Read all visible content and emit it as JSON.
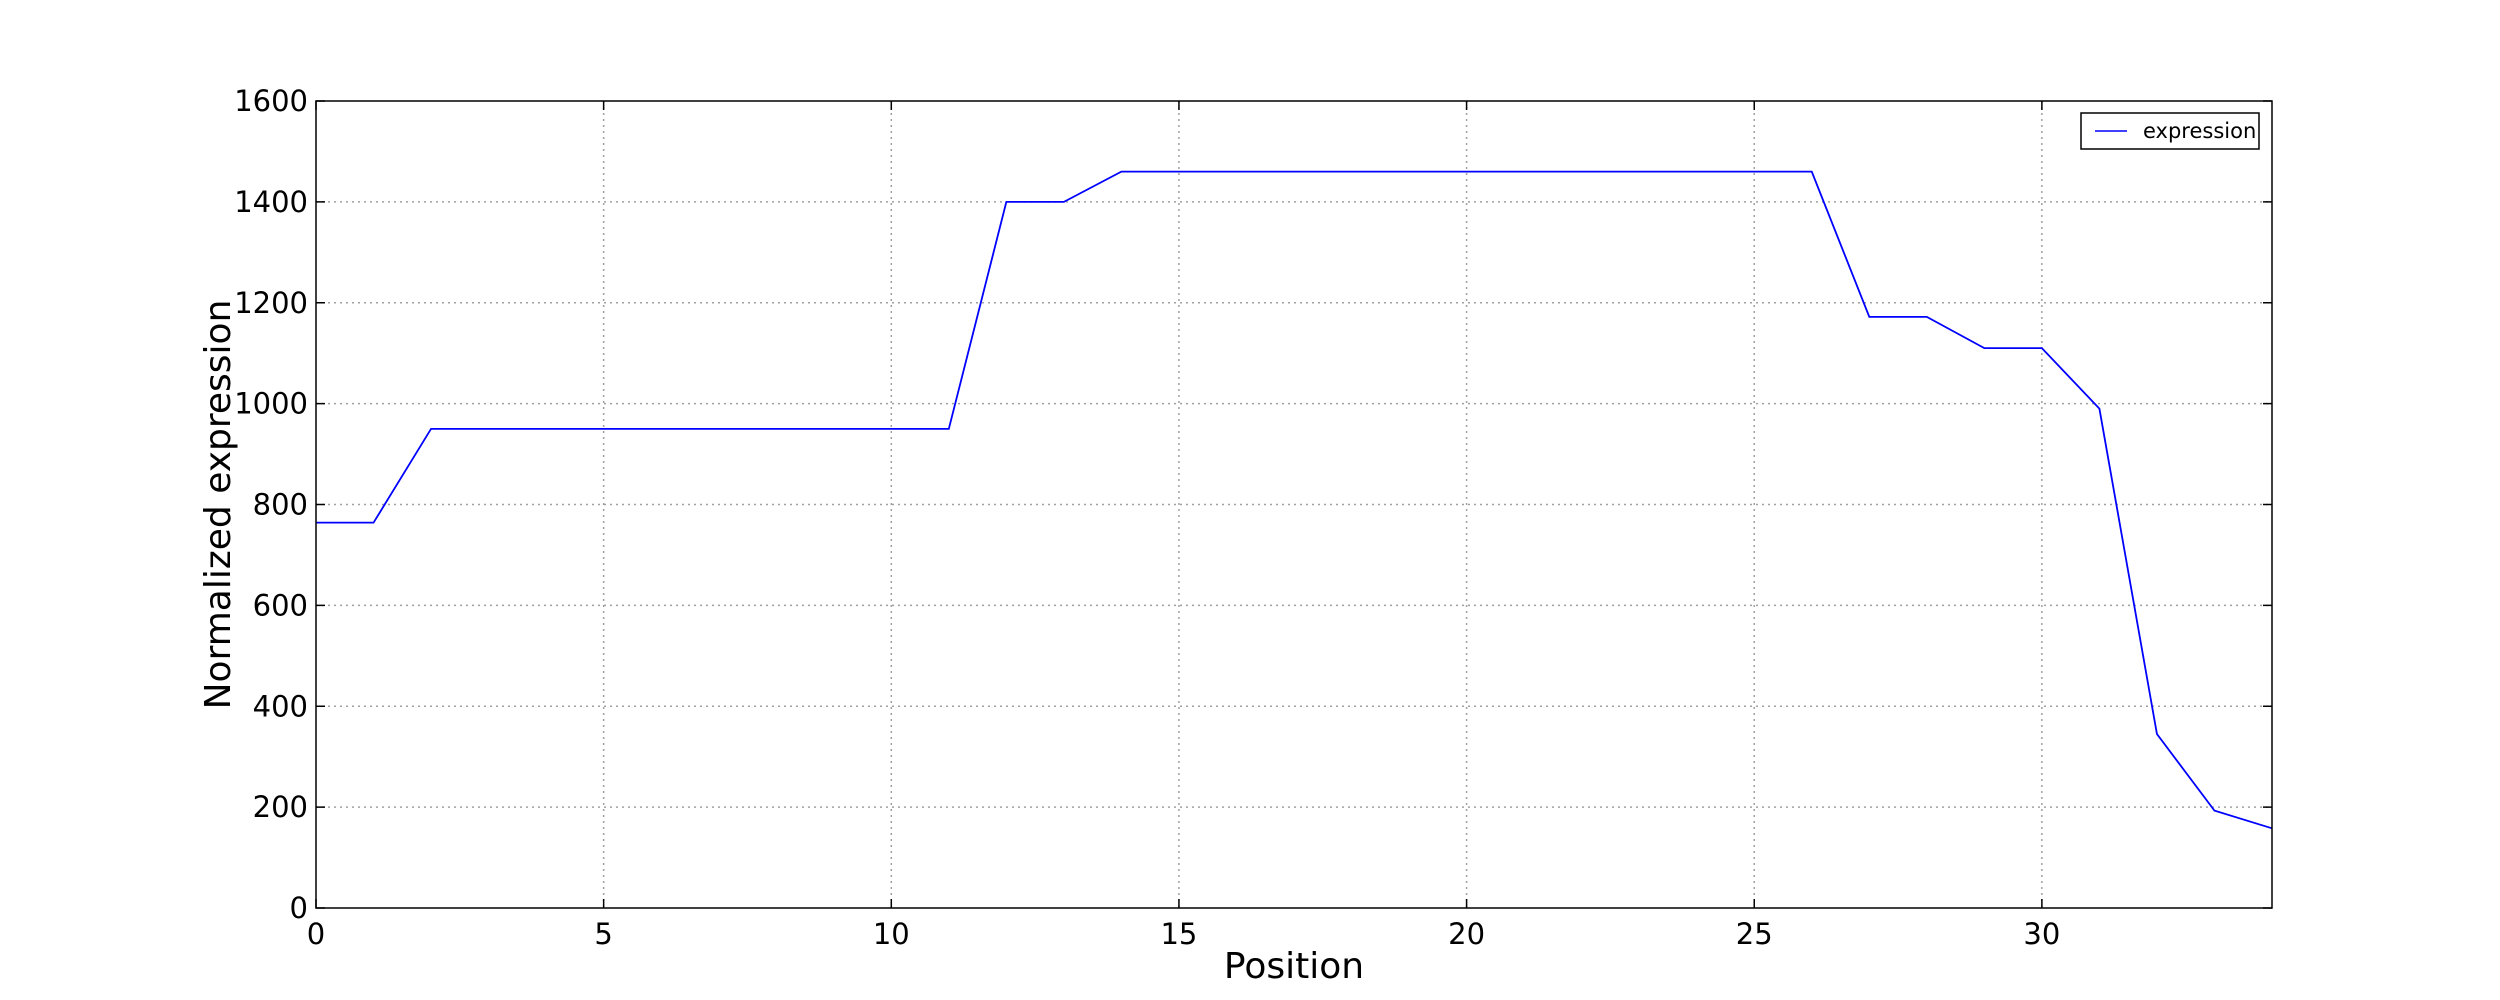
{
  "chart_data": {
    "type": "line",
    "title": "",
    "xlabel": "Position",
    "ylabel": "Normalized expression",
    "xlim": [
      0,
      34
    ],
    "ylim": [
      0,
      1600
    ],
    "xticks": [
      0,
      5,
      10,
      15,
      20,
      25,
      30
    ],
    "yticks": [
      0,
      200,
      400,
      600,
      800,
      1000,
      1200,
      1400,
      1600
    ],
    "grid": true,
    "legend_position": "top-right",
    "series": [
      {
        "name": "expression",
        "color": "#0000ff",
        "x": [
          0,
          1,
          2,
          3,
          4,
          5,
          6,
          7,
          8,
          9,
          10,
          11,
          12,
          13,
          14,
          15,
          16,
          17,
          18,
          19,
          20,
          21,
          22,
          23,
          24,
          25,
          26,
          27,
          28,
          29,
          30,
          31,
          32,
          33,
          34
        ],
        "y": [
          764,
          764,
          950,
          950,
          950,
          950,
          950,
          950,
          950,
          950,
          950,
          950,
          1400,
          1400,
          1460,
          1460,
          1460,
          1460,
          1460,
          1460,
          1460,
          1460,
          1460,
          1460,
          1460,
          1460,
          1460,
          1172,
          1172,
          1110,
          1110,
          990,
          345,
          193,
          158
        ]
      }
    ]
  }
}
